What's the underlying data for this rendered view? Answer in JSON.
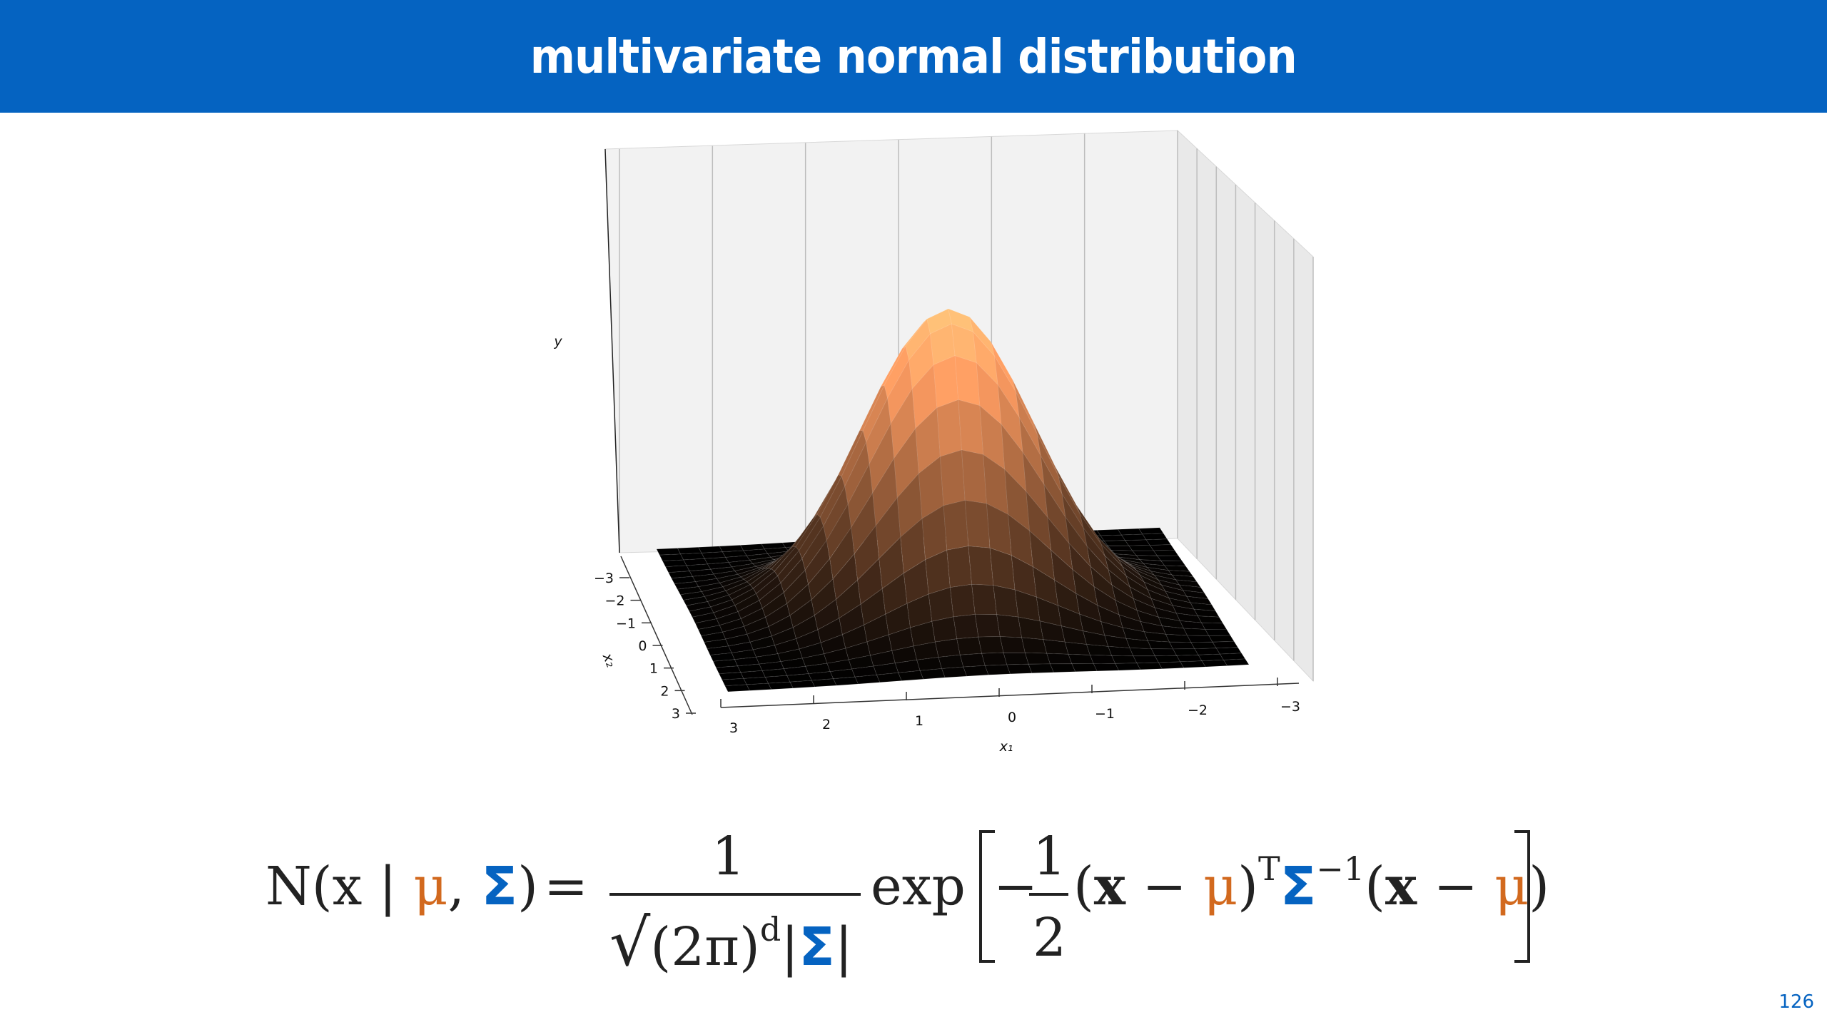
{
  "slide": {
    "title": "multivariate normal distribution",
    "page_number": "126"
  },
  "plot": {
    "ylabel": "y",
    "xlabel": "x₁",
    "zlabel": "x₂",
    "x1_ticks": [
      "3",
      "2",
      "1",
      "0",
      "−1",
      "−2",
      "−3"
    ],
    "x2_ticks": [
      "−3",
      "−2",
      "−1",
      "0",
      "1",
      "2",
      "3"
    ],
    "surface_colors": {
      "low": "#000000",
      "high": "#FFC47A"
    }
  },
  "formula": {
    "lhs_N": "N",
    "lhs_open": "(x | ",
    "mu": "μ",
    "comma": ",",
    "Sigma": "Σ",
    "lhs_close": ")",
    "equals": "=",
    "frac_num": "1",
    "sqrt": "√",
    "frac_den_pre": "(2π)",
    "frac_den_d": "d",
    "frac_den_bar_open": "|",
    "frac_den_bar_close": "|",
    "exp": "exp",
    "minus": "−",
    "half_num": "1",
    "half_den": "2",
    "term1_open": "(",
    "x_bold": "x",
    "term_minus": " − ",
    "term1_close": ")",
    "transpose": "T",
    "inverse": "−1",
    "term2_open": "(",
    "term2_close": ")"
  }
}
